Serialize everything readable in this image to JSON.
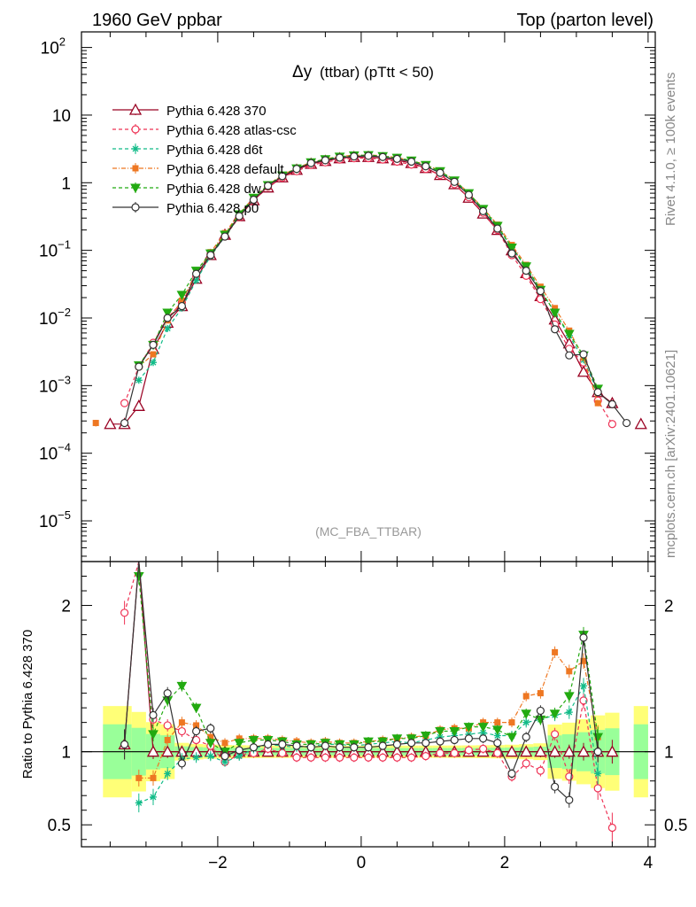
{
  "header": {
    "left": "1960 GeV ppbar",
    "right": "Top (parton level)",
    "side_top": "Rivet 4.1.0, ≥ 100k events",
    "side_bottom": "mcplots.cern.ch [arXiv:2401.10621]",
    "watermark": "(MC_FBA_TTBAR)"
  },
  "chart_data": {
    "type": "line",
    "title": "Δy (ttbar) (pTtt < 50)",
    "title_symbol": "Δy",
    "title_rest": "(ttbar) (pTtt < 50)",
    "xlim": [
      -3.9,
      4.1
    ],
    "ylim_main": [
      2.5e-06,
      170
    ],
    "ylim_ratio": [
      0.35,
      2.3
    ],
    "ratio_ylabel": "Ratio to Pythia 6.428 370",
    "x_ticks": [
      -2,
      0,
      2,
      4
    ],
    "x_tick_labels": [
      "−2",
      "0",
      "2",
      "4"
    ],
    "main_y_ticks": [
      {
        "value": 100,
        "base": "10",
        "exp": "2"
      },
      {
        "value": 10,
        "base": "10",
        "exp": ""
      },
      {
        "value": 1,
        "base": "1",
        "exp": ""
      },
      {
        "value": 0.1,
        "base": "10",
        "exp": "−1"
      },
      {
        "value": 0.01,
        "base": "10",
        "exp": "−2"
      },
      {
        "value": 0.001,
        "base": "10",
        "exp": "−3"
      },
      {
        "value": 0.0001,
        "base": "10",
        "exp": "−4"
      },
      {
        "value": 1e-05,
        "base": "10",
        "exp": "−5"
      }
    ],
    "ratio_y_ticks": [
      {
        "value": 2,
        "label": "2"
      },
      {
        "value": 1,
        "label": "1"
      },
      {
        "value": 0.5,
        "label": "0.5"
      }
    ],
    "x": [
      -3.7,
      -3.5,
      -3.3,
      -3.1,
      -2.9,
      -2.7,
      -2.5,
      -2.3,
      -2.1,
      -1.9,
      -1.7,
      -1.5,
      -1.3,
      -1.1,
      -0.9,
      -0.7,
      -0.5,
      -0.3,
      -0.1,
      0.1,
      0.3,
      0.5,
      0.7,
      0.9,
      1.1,
      1.3,
      1.5,
      1.7,
      1.9,
      2.1,
      2.3,
      2.5,
      2.7,
      2.9,
      3.1,
      3.3,
      3.5,
      3.7,
      3.9
    ],
    "series": [
      {
        "name": "Pythia 6.428 370",
        "color": "#990022",
        "marker": "triangle-open",
        "dash": "",
        "values": [
          null,
          0.00027,
          0.00027,
          0.0005,
          0.0035,
          0.0085,
          0.015,
          0.038,
          0.085,
          0.17,
          0.32,
          0.55,
          0.85,
          1.2,
          1.55,
          1.9,
          2.1,
          2.3,
          2.4,
          2.4,
          2.3,
          2.15,
          1.95,
          1.65,
          1.3,
          0.95,
          0.6,
          0.35,
          0.2,
          0.1,
          0.046,
          0.021,
          0.0095,
          0.0042,
          0.0016,
          0.0008,
          0.00055,
          null,
          0.00027
        ],
        "ratio": [
          null,
          null,
          1.05,
          2.4,
          1,
          1,
          1,
          1,
          1,
          1,
          1,
          1,
          1,
          1,
          1,
          1,
          1,
          1,
          1,
          1,
          1,
          1,
          1,
          1,
          1,
          1,
          1,
          1,
          1,
          1,
          1,
          1,
          1,
          1,
          1,
          1,
          1,
          null,
          null
        ]
      },
      {
        "name": "Pythia 6.428 atlas-csc",
        "color": "#ee3355",
        "marker": "circle-open",
        "dash": "4,3",
        "values": [
          null,
          null,
          0.00055,
          0.0019,
          0.0043,
          0.01,
          0.017,
          0.041,
          0.088,
          0.16,
          0.31,
          0.55,
          0.87,
          1.19,
          1.48,
          1.83,
          2.0,
          2.2,
          2.3,
          2.31,
          2.2,
          2.05,
          1.85,
          1.6,
          1.3,
          0.95,
          0.61,
          0.36,
          0.2,
          0.085,
          0.042,
          0.019,
          0.008,
          0.0035,
          0.0022,
          0.0006,
          0.00027,
          null,
          null
        ],
        "ratio": [
          null,
          null,
          1.95,
          2.4,
          1.22,
          1.18,
          1.14,
          1.08,
          1.04,
          0.93,
          0.98,
          0.99,
          1.02,
          0.99,
          0.96,
          0.96,
          0.96,
          0.96,
          0.96,
          0.96,
          0.96,
          0.96,
          0.96,
          0.97,
          0.99,
          0.99,
          1.01,
          1.02,
          0.99,
          0.83,
          0.92,
          0.87,
          1.12,
          0.83,
          1.35,
          0.75,
          0.48,
          null,
          null
        ]
      },
      {
        "name": "Pythia 6.428 d6t",
        "color": "#11bb88",
        "marker": "star",
        "dash": "4,3",
        "values": [
          null,
          null,
          null,
          0.0012,
          0.0022,
          0.007,
          0.014,
          0.036,
          0.082,
          0.16,
          0.32,
          0.57,
          0.9,
          1.25,
          1.6,
          1.97,
          2.2,
          2.42,
          2.5,
          2.52,
          2.45,
          2.3,
          2.06,
          1.78,
          1.44,
          1.05,
          0.68,
          0.4,
          0.22,
          0.11,
          0.055,
          0.026,
          0.012,
          0.0055,
          0.0024,
          0.0008,
          null,
          null,
          null
        ],
        "ratio": [
          null,
          null,
          null,
          0.65,
          0.69,
          0.85,
          0.95,
          0.96,
          0.97,
          0.93,
          0.97,
          1.02,
          1.05,
          1.04,
          1.03,
          1.04,
          1.05,
          1.05,
          1.04,
          1.05,
          1.06,
          1.07,
          1.06,
          1.08,
          1.1,
          1.11,
          1.12,
          1.13,
          1.11,
          1.11,
          1.2,
          1.22,
          1.25,
          1.27,
          1.45,
          0.85,
          null,
          null,
          null
        ]
      },
      {
        "name": "Pythia 6.428 default",
        "color": "#ee7722",
        "marker": "square",
        "dash": "5,2,1,2",
        "values": [
          0.00028,
          null,
          null,
          0.0019,
          0.0029,
          0.0092,
          0.018,
          0.045,
          0.094,
          0.18,
          0.35,
          0.6,
          0.93,
          1.3,
          1.65,
          2.0,
          2.25,
          2.45,
          2.55,
          2.58,
          2.5,
          2.35,
          2.14,
          1.84,
          1.5,
          1.1,
          0.7,
          0.42,
          0.24,
          0.12,
          0.061,
          0.029,
          0.014,
          0.0065,
          0.0026,
          0.00055,
          null,
          null,
          null
        ],
        "ratio": [
          null,
          null,
          null,
          0.82,
          0.82,
          1.08,
          1.2,
          1.18,
          1.1,
          1.06,
          1.09,
          1.09,
          1.09,
          1.08,
          1.07,
          1.06,
          1.07,
          1.06,
          1.06,
          1.07,
          1.08,
          1.09,
          1.1,
          1.11,
          1.15,
          1.16,
          1.16,
          1.2,
          1.2,
          1.2,
          1.38,
          1.4,
          1.68,
          1.55,
          1.62,
          1.1,
          null,
          null,
          null
        ]
      },
      {
        "name": "Pythia 6.428 dw",
        "color": "#22aa11",
        "marker": "triangle-down",
        "dash": "4,3",
        "values": [
          null,
          null,
          null,
          0.002,
          0.004,
          0.012,
          0.022,
          0.05,
          0.09,
          0.17,
          0.34,
          0.6,
          0.92,
          1.28,
          1.63,
          2.0,
          2.23,
          2.43,
          2.53,
          2.56,
          2.47,
          2.34,
          2.13,
          1.83,
          1.48,
          1.08,
          0.7,
          0.41,
          0.23,
          0.11,
          0.058,
          0.026,
          0.012,
          0.0058,
          0.0028,
          0.0009,
          null,
          null,
          null
        ],
        "ratio": [
          null,
          null,
          null,
          2.2,
          1.12,
          1.35,
          1.45,
          1.3,
          1.06,
          1.0,
          1.06,
          1.08,
          1.08,
          1.07,
          1.05,
          1.05,
          1.06,
          1.05,
          1.05,
          1.07,
          1.07,
          1.09,
          1.09,
          1.11,
          1.14,
          1.14,
          1.17,
          1.17,
          1.15,
          1.1,
          1.26,
          1.22,
          1.26,
          1.38,
          1.8,
          1.1,
          null,
          null,
          null
        ]
      },
      {
        "name": "Pythia 6.428 p0",
        "color": "#333333",
        "marker": "circle-open",
        "dash": "",
        "values": [
          null,
          null,
          0.00028,
          0.0019,
          0.004,
          0.01,
          0.015,
          0.045,
          0.085,
          0.16,
          0.32,
          0.56,
          0.9,
          1.25,
          1.6,
          1.95,
          2.15,
          2.35,
          2.45,
          2.5,
          2.4,
          2.25,
          2.05,
          1.75,
          1.4,
          1.03,
          0.66,
          0.38,
          0.21,
          0.09,
          0.05,
          0.025,
          0.0068,
          0.0028,
          0.0029,
          0.0008,
          0.00053,
          0.00028,
          null
        ],
        "ratio": [
          null,
          null,
          1.05,
          2.4,
          1.25,
          1.4,
          0.92,
          1.14,
          1.16,
          0.97,
          1.01,
          1.03,
          1.05,
          1.05,
          1.04,
          1.03,
          1.04,
          1.03,
          1.03,
          1.03,
          1.04,
          1.05,
          1.06,
          1.06,
          1.07,
          1.08,
          1.09,
          1.09,
          1.06,
          0.85,
          1.1,
          1.28,
          0.76,
          0.67,
          1.78,
          1.0,
          null,
          null,
          null
        ]
      }
    ]
  }
}
